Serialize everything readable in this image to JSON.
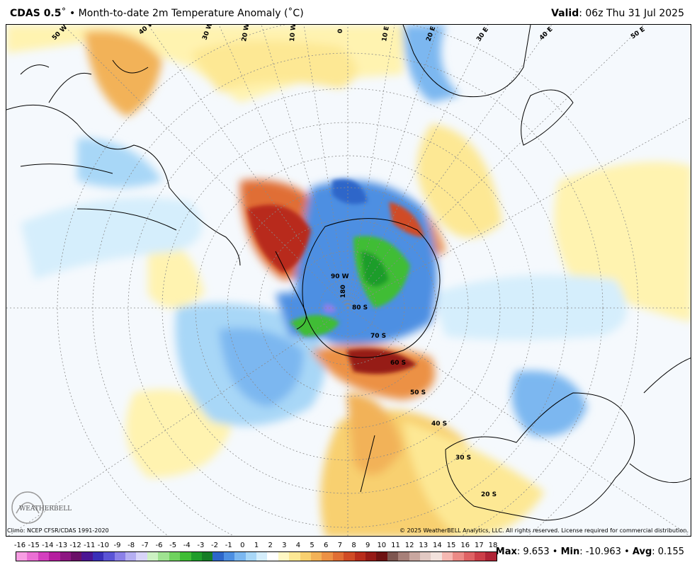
{
  "header": {
    "model": "CDAS 0.5",
    "degree": "˚",
    "bullet": "•",
    "product": "Month-to-date 2m Temperature Anomaly (˚C)",
    "valid_label": "Valid",
    "valid_value": ": 06z Thu 31 Jul 2025"
  },
  "map": {
    "longitude_labels": [
      "50 W",
      "40 W",
      "30 W",
      "20 W",
      "10 W",
      "0",
      "10 E",
      "20 E",
      "30 E",
      "40 E",
      "50 E"
    ],
    "latitude_labels": [
      "80 S",
      "70 S",
      "60 S",
      "50 S",
      "40 S",
      "30 S",
      "20 S"
    ],
    "pole_labels": [
      "90 W",
      "180"
    ],
    "logo_text": "WEATHERBELL"
  },
  "footer": {
    "climo": "Climo: NCEP CFSR/CDAS 1991-2020",
    "copyright": "© 2025 WeatherBELL Analytics, LLC. All rights reserved. License required for commercial distribution."
  },
  "colorbar": {
    "labels": [
      "-16",
      "-15",
      "-14",
      "-13",
      "-12",
      "-11",
      "-10",
      "-9",
      "-8",
      "-7",
      "-6",
      "-5",
      "-4",
      "-3",
      "-2",
      "-1",
      "0",
      "1",
      "2",
      "3",
      "4",
      "5",
      "6",
      "7",
      "8",
      "9",
      "10",
      "11",
      "12",
      "13",
      "14",
      "15",
      "16",
      "17",
      "18"
    ],
    "colors": [
      "#f79ee3",
      "#ea70d4",
      "#d43fbe",
      "#b51f9f",
      "#8d1682",
      "#6a0f68",
      "#4b1593",
      "#3a2fb8",
      "#5b54d6",
      "#8b80e8",
      "#b5aef2",
      "#d8d4f8",
      "#cdf2c3",
      "#9fe391",
      "#6fd25e",
      "#3fbd35",
      "#1f9d2a",
      "#167d26",
      "#2d66c9",
      "#4d8fe2",
      "#7bb7f0",
      "#a8d7f7",
      "#d5eefc",
      "#ffffff",
      "#fff8c4",
      "#fde894",
      "#f8d070",
      "#f2b258",
      "#ec9145",
      "#e06e34",
      "#d04b25",
      "#b82c1b",
      "#961a16",
      "#6e1212",
      "#7e5650",
      "#a78079",
      "#c9a7a0",
      "#e2c9c3",
      "#f3e2dd",
      "#f6b8b2",
      "#ec8a86",
      "#df6264",
      "#cc3e48",
      "#b02436"
    ]
  },
  "stats": {
    "max_label": "Max",
    "max_value": "9.653",
    "min_label": "Min",
    "min_value": "-10.963",
    "avg_label": "Avg",
    "avg_value": "0.155",
    "separator": "•"
  },
  "colors": {
    "land_outline": "#000000",
    "grid": "#8a8a8a",
    "ocean_background": "#f5f9fd"
  }
}
